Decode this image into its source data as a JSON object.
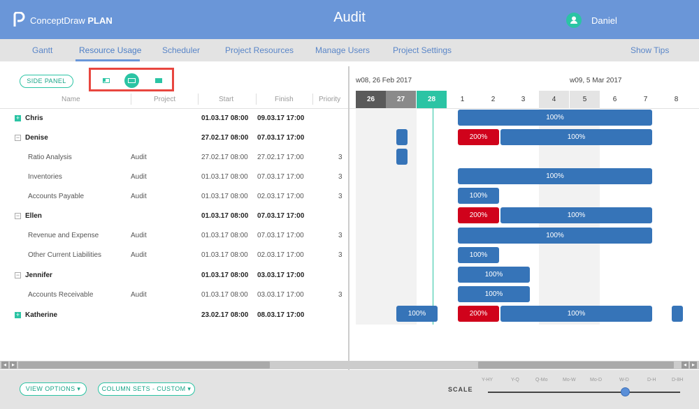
{
  "header": {
    "brand_prefix": "ConceptDraw",
    "brand_suffix": "PLAN",
    "title": "Audit",
    "user": "Daniel"
  },
  "tabs": [
    {
      "label": "Gantt"
    },
    {
      "label": "Resource Usage"
    },
    {
      "label": "Scheduler"
    },
    {
      "label": "Project Resources"
    },
    {
      "label": "Manage Users"
    },
    {
      "label": "Project Settings"
    },
    {
      "label": "Show Tips"
    }
  ],
  "toolbar": {
    "side_panel": "SIDE PANEL"
  },
  "columns": {
    "name": "Name",
    "project": "Project",
    "start": "Start",
    "finish": "Finish",
    "priority": "Priority"
  },
  "rows": [
    {
      "name": "Chris",
      "project": "",
      "start": "01.03.17 08:00",
      "finish": "09.03.17 17:00",
      "priority": ""
    },
    {
      "name": "Denise",
      "project": "",
      "start": "27.02.17 08:00",
      "finish": "07.03.17 17:00",
      "priority": ""
    },
    {
      "name": "Ratio Analysis",
      "project": "Audit",
      "start": "27.02.17 08:00",
      "finish": "27.02.17 17:00",
      "priority": "3"
    },
    {
      "name": "Inventories",
      "project": "Audit",
      "start": "01.03.17 08:00",
      "finish": "07.03.17 17:00",
      "priority": "3"
    },
    {
      "name": "Accounts Payable",
      "project": "Audit",
      "start": "01.03.17 08:00",
      "finish": "02.03.17 17:00",
      "priority": "3"
    },
    {
      "name": "Ellen",
      "project": "",
      "start": "01.03.17 08:00",
      "finish": "07.03.17 17:00",
      "priority": ""
    },
    {
      "name": "Revenue and Expense",
      "project": "Audit",
      "start": "01.03.17 08:00",
      "finish": "07.03.17 17:00",
      "priority": "3"
    },
    {
      "name": "Other Current Liabilities",
      "project": "Audit",
      "start": "01.03.17 08:00",
      "finish": "02.03.17 17:00",
      "priority": "3"
    },
    {
      "name": "Jennifer",
      "project": "",
      "start": "01.03.17 08:00",
      "finish": "03.03.17 17:00",
      "priority": ""
    },
    {
      "name": "Accounts Receivable",
      "project": "Audit",
      "start": "01.03.17 08:00",
      "finish": "03.03.17 17:00",
      "priority": "3"
    },
    {
      "name": "Katherine",
      "project": "",
      "start": "23.02.17 08:00",
      "finish": "08.03.17 17:00",
      "priority": ""
    }
  ],
  "timeline": {
    "weeks": [
      {
        "label": "w08, 26 Feb 2017"
      },
      {
        "label": "w09, 5 Mar 2017"
      }
    ],
    "days": [
      "26",
      "27",
      "28",
      "1",
      "2",
      "3",
      "4",
      "5",
      "6",
      "7",
      "8"
    ]
  },
  "bars": {
    "chris": "100%",
    "denise_a": "200%",
    "denise_b": "100%",
    "inventories": "100%",
    "ap": "100%",
    "ellen_a": "200%",
    "ellen_b": "100%",
    "rev": "100%",
    "ocl": "100%",
    "jennifer": "100%",
    "ar": "100%",
    "kath_a": "100%",
    "kath_b": "200%",
    "kath_c": "100%"
  },
  "footer": {
    "view_options": "VIEW OPTIONS ▾",
    "column_sets": "COLUMN SETS - CUSTOM ▾",
    "scale": "SCALE",
    "scale_ticks": [
      "Y-HY",
      "Y-Q",
      "Q-Mo",
      "Mo-W",
      "Mo-D",
      "W-D",
      "D-H",
      "D-8H"
    ]
  }
}
